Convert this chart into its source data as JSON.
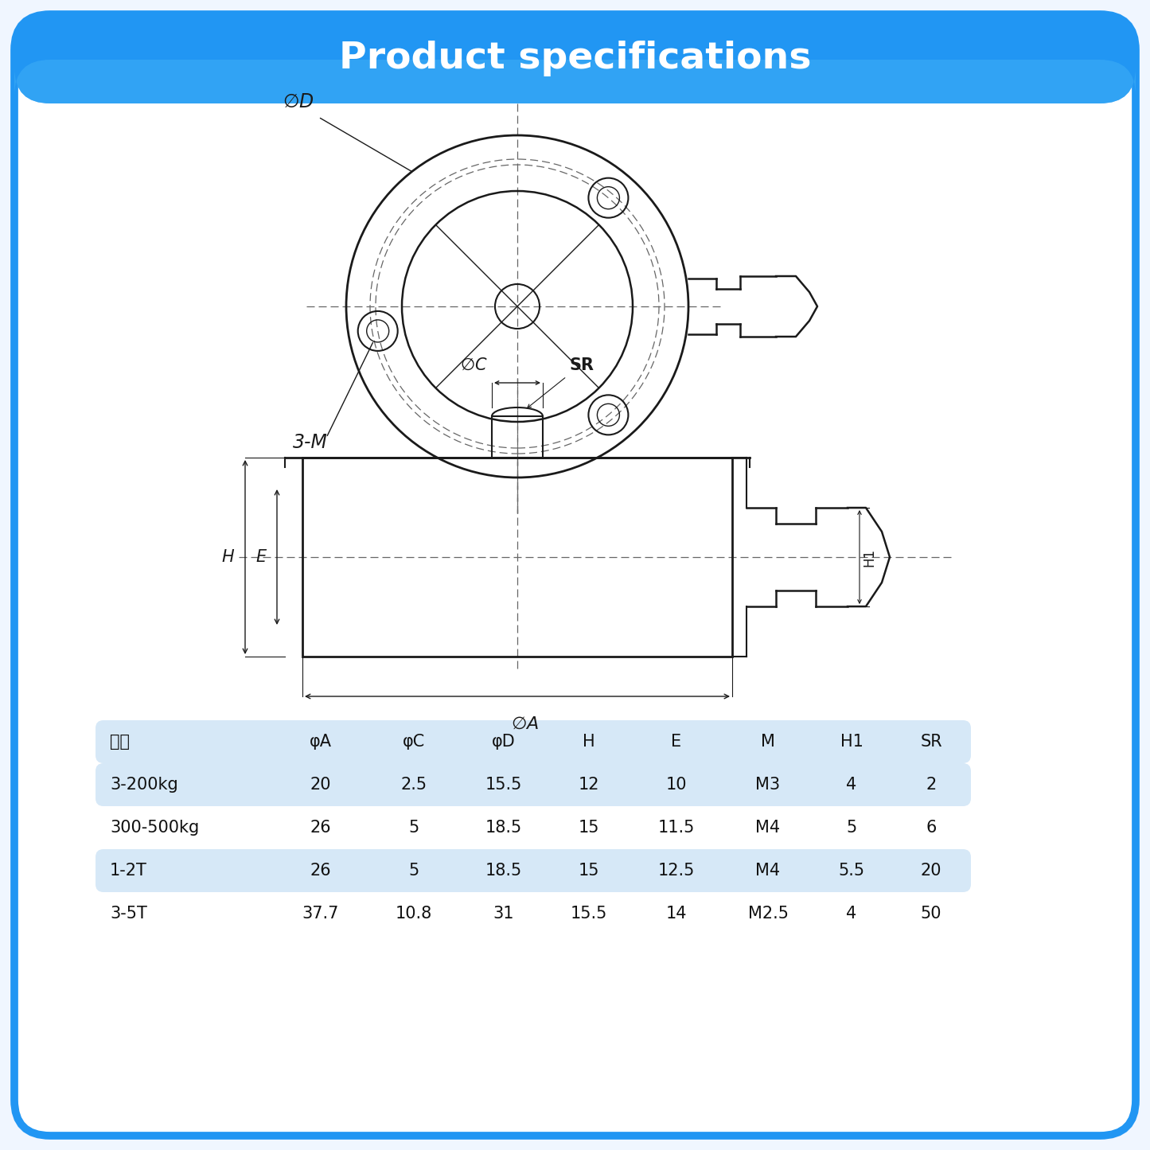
{
  "title": "Product specifications",
  "title_bg_color": "#2196F3",
  "title_text_color": "#ffffff",
  "bg_color": "#f0f6ff",
  "border_color": "#2196F3",
  "table_header": [
    "量程",
    "φA",
    "φC",
    "φD",
    "H",
    "E",
    "M",
    "H1",
    "SR"
  ],
  "table_rows": [
    [
      "3-200kg",
      "20",
      "2.5",
      "15.5",
      "12",
      "10",
      "M3",
      "4",
      "2"
    ],
    [
      "300-500kg",
      "26",
      "5",
      "18.5",
      "15",
      "11.5",
      "M4",
      "5",
      "6"
    ],
    [
      "1-2T",
      "26",
      "5",
      "18.5",
      "15",
      "12.5",
      "M4",
      "5.5",
      "20"
    ],
    [
      "3-5T",
      "37.7",
      "10.8",
      "31",
      "15.5",
      "14",
      "M2.5",
      "4",
      "50"
    ]
  ],
  "table_header_bg": "#d6e8f7",
  "table_row_alt_bg": "#d6e8f7",
  "table_row_bg": "#ffffff",
  "line_color": "#1a1a1a",
  "dash_color": "#666666"
}
